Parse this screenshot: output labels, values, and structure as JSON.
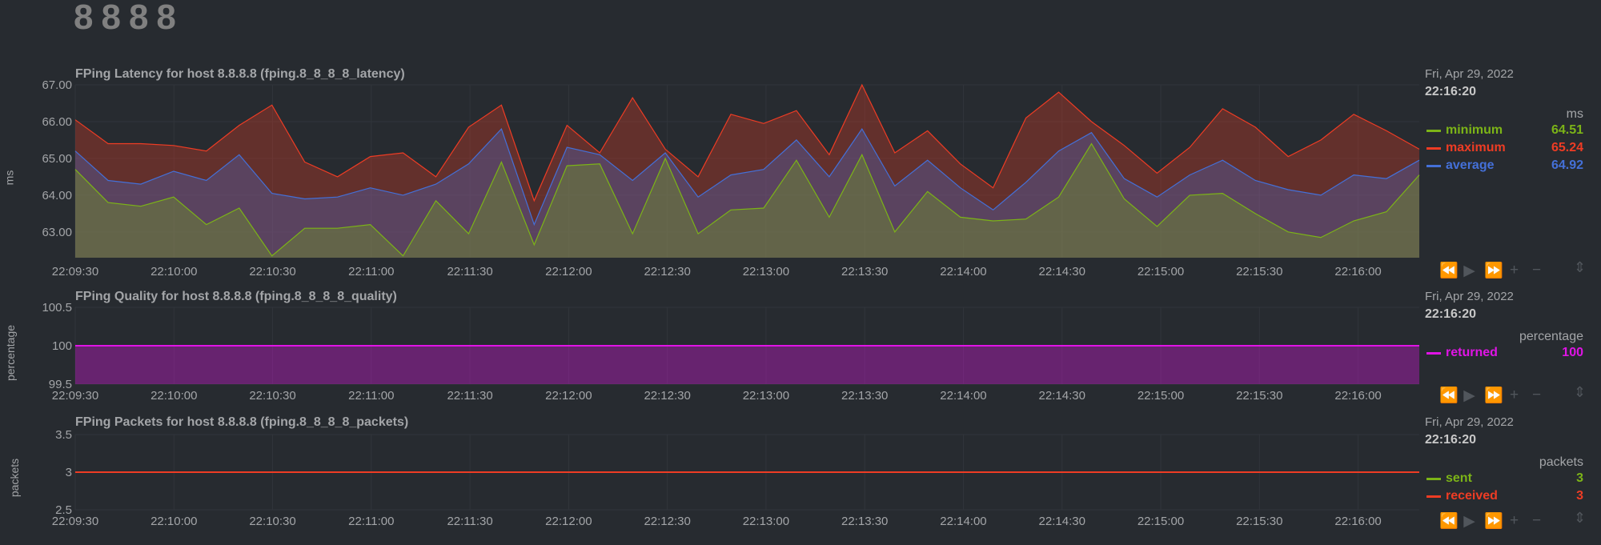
{
  "page": {
    "heading": "8888"
  },
  "colors": {
    "background": "#272b30",
    "grid": "#31353b",
    "text": "#a3a5a8",
    "minimum": "#7cb417",
    "maximum": "#ee3c24",
    "average": "#4470d8",
    "returned": "#e014e6",
    "sent": "#7cb417",
    "received": "#ee3c24"
  },
  "x_ticks": [
    "22:09:30",
    "22:10:00",
    "22:10:30",
    "22:11:00",
    "22:11:30",
    "22:12:00",
    "22:12:30",
    "22:13:00",
    "22:13:30",
    "22:14:00",
    "22:14:30",
    "22:15:00",
    "22:15:30",
    "22:16:00"
  ],
  "toolbox_icons": [
    "rewind-icon",
    "play-icon",
    "fast-forward-icon",
    "zoom-in-icon",
    "zoom-out-icon"
  ],
  "chart_data": [
    {
      "type": "area",
      "title": "FPing Latency for host 8.8.8.8 (fping.8_8_8_8_latency)",
      "ylabel": "ms",
      "units": "ms",
      "ylim": [
        62.3,
        67.0
      ],
      "y_ticks": [
        "67.00",
        "66.00",
        "65.00",
        "64.00",
        "63.00"
      ],
      "y_tick_values": [
        67,
        66,
        65,
        64,
        63
      ],
      "legend": {
        "date": "Fri, Apr 29, 2022",
        "time": "22:16:20",
        "entries": [
          {
            "name": "minimum",
            "value": "64.51",
            "color": "#7cb417"
          },
          {
            "name": "maximum",
            "value": "65.24",
            "color": "#ee3c24"
          },
          {
            "name": "average",
            "value": "64.92",
            "color": "#4470d8"
          }
        ]
      },
      "series": [
        {
          "name": "minimum",
          "color": "#7cb417",
          "values": [
            64.7,
            63.8,
            63.7,
            63.95,
            63.2,
            63.65,
            62.35,
            63.1,
            63.1,
            63.2,
            62.35,
            63.85,
            62.95,
            64.9,
            62.65,
            64.8,
            64.85,
            62.95,
            65.0,
            62.95,
            63.6,
            63.65,
            64.95,
            63.4,
            65.1,
            63.0,
            64.1,
            63.4,
            63.3,
            63.35,
            63.95,
            65.4,
            63.9,
            63.15,
            64.0,
            64.05,
            63.5,
            63.0,
            62.85,
            63.3,
            63.55,
            64.55
          ]
        },
        {
          "name": "maximum",
          "color": "#ee3c24",
          "values": [
            66.05,
            65.4,
            65.4,
            65.35,
            65.2,
            65.9,
            66.45,
            64.9,
            64.5,
            65.05,
            65.15,
            64.5,
            65.85,
            66.45,
            63.85,
            65.9,
            65.15,
            66.65,
            65.25,
            64.5,
            66.2,
            65.95,
            66.3,
            65.1,
            67.0,
            65.15,
            65.75,
            64.85,
            64.2,
            66.1,
            66.8,
            66.0,
            65.35,
            64.6,
            65.3,
            66.35,
            65.85,
            65.05,
            65.5,
            66.2,
            65.75,
            65.25
          ]
        },
        {
          "name": "average",
          "color": "#4470d8",
          "values": [
            65.2,
            64.4,
            64.3,
            64.65,
            64.4,
            65.1,
            64.05,
            63.9,
            63.95,
            64.2,
            64.0,
            64.3,
            64.85,
            65.8,
            63.2,
            65.3,
            65.1,
            64.4,
            65.15,
            63.95,
            64.55,
            64.7,
            65.5,
            64.5,
            65.8,
            64.25,
            64.95,
            64.2,
            63.6,
            64.35,
            65.2,
            65.7,
            64.45,
            63.95,
            64.55,
            64.95,
            64.4,
            64.15,
            64.0,
            64.55,
            64.45,
            64.95
          ]
        }
      ]
    },
    {
      "type": "area",
      "title": "FPing Quality for host 8.8.8.8 (fping.8_8_8_8_quality)",
      "ylabel": "percentage",
      "units": "percentage",
      "ylim": [
        99.5,
        100.5
      ],
      "y_ticks": [
        "100.5",
        "100",
        "99.5"
      ],
      "y_tick_values": [
        100.5,
        100,
        99.5
      ],
      "legend": {
        "date": "Fri, Apr 29, 2022",
        "time": "22:16:20",
        "entries": [
          {
            "name": "returned",
            "value": "100",
            "color": "#e014e6"
          }
        ]
      },
      "series": [
        {
          "name": "returned",
          "color": "#e014e6",
          "values": [
            100,
            100
          ]
        }
      ]
    },
    {
      "type": "line",
      "title": "FPing Packets for host 8.8.8.8 (fping.8_8_8_8_packets)",
      "ylabel": "packets",
      "units": "packets",
      "ylim": [
        2.5,
        3.5
      ],
      "y_ticks": [
        "3.5",
        "3",
        "2.5"
      ],
      "y_tick_values": [
        3.5,
        3,
        2.5
      ],
      "legend": {
        "date": "Fri, Apr 29, 2022",
        "time": "22:16:20",
        "entries": [
          {
            "name": "sent",
            "value": "3",
            "color": "#7cb417"
          },
          {
            "name": "received",
            "value": "3",
            "color": "#ee3c24"
          }
        ]
      },
      "series": [
        {
          "name": "sent",
          "color": "#7cb417",
          "values": [
            3,
            3
          ]
        },
        {
          "name": "received",
          "color": "#ee3c24",
          "values": [
            3,
            3
          ]
        }
      ]
    }
  ]
}
